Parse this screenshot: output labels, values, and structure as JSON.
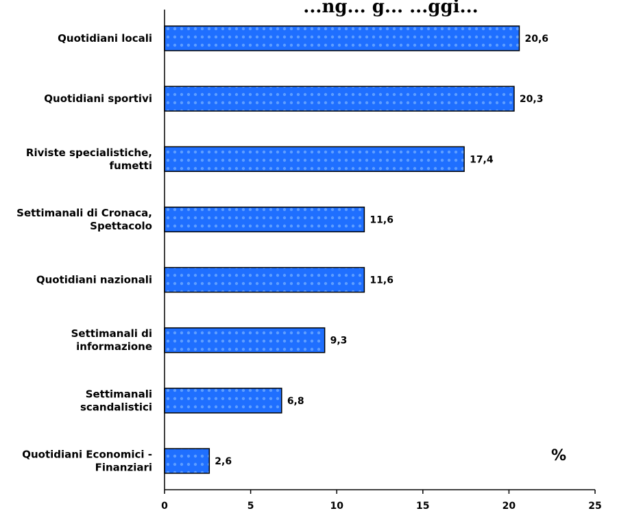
{
  "chart_data": {
    "type": "bar",
    "orientation": "horizontal",
    "title": "...ng... g... ...ggi...",
    "categories": [
      [
        "Quotidiani locali"
      ],
      [
        "Quotidiani sportivi"
      ],
      [
        "Riviste specialistiche,",
        "fumetti"
      ],
      [
        "Settimanali di Cronaca,",
        "Spettacolo"
      ],
      [
        "Quotidiani nazionali"
      ],
      [
        "Settimanali di",
        "informazione"
      ],
      [
        "Settimanali",
        "scandalistici"
      ],
      [
        "Quotidiani Economici -",
        "Finanziari"
      ]
    ],
    "values": [
      20.6,
      20.3,
      17.4,
      11.6,
      11.6,
      9.3,
      6.8,
      2.6
    ],
    "value_labels": [
      "20,6",
      "20,3",
      "17,4",
      "11,6",
      "11,6",
      "9,3",
      "6,8",
      "2,6"
    ],
    "xlim": [
      0,
      25
    ],
    "x_ticks": [
      0,
      5,
      10,
      15,
      20,
      25
    ],
    "unit_label": "%",
    "bar_color": "#1f6fff",
    "grid": false,
    "legend": "none"
  }
}
